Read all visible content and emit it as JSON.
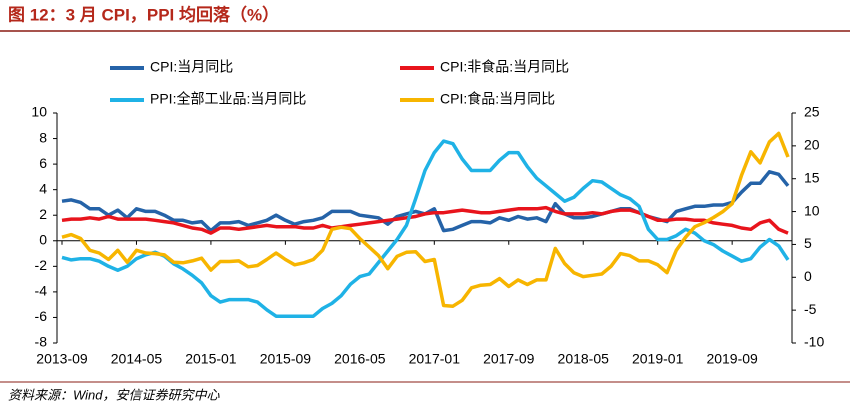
{
  "chart_data": {
    "type": "line",
    "title": "图 12：3 月 CPI，PPI 均回落（%）",
    "source": "资料来源：Wind，安信证券研究中心",
    "categories": [
      "2013-09",
      null,
      null,
      null,
      null,
      null,
      null,
      null,
      "2014-05",
      null,
      null,
      null,
      null,
      null,
      null,
      null,
      "2015-01",
      null,
      null,
      null,
      null,
      null,
      null,
      null,
      "2015-09",
      null,
      null,
      null,
      null,
      null,
      null,
      null,
      "2016-05",
      null,
      null,
      null,
      null,
      null,
      null,
      null,
      "2017-01",
      null,
      null,
      null,
      null,
      null,
      null,
      null,
      "2017-09",
      null,
      null,
      null,
      null,
      null,
      null,
      null,
      "2018-05",
      null,
      null,
      null,
      null,
      null,
      null,
      null,
      "2019-01",
      null,
      null,
      null,
      null,
      null,
      null,
      null,
      "2019-09",
      null,
      null,
      null,
      null,
      null,
      null
    ],
    "series": [
      {
        "name": "CPI:当月同比",
        "color": "#2563a8",
        "axis": "y",
        "values": [
          3.1,
          3.2,
          3.0,
          2.5,
          2.5,
          2.0,
          2.4,
          1.8,
          2.5,
          2.3,
          2.3,
          2.0,
          1.6,
          1.6,
          1.4,
          1.5,
          0.8,
          1.4,
          1.4,
          1.5,
          1.2,
          1.4,
          1.6,
          2.0,
          1.6,
          1.3,
          1.5,
          1.6,
          1.8,
          2.3,
          2.3,
          2.3,
          2.0,
          1.9,
          1.8,
          1.3,
          1.9,
          2.1,
          2.3,
          2.1,
          2.5,
          0.8,
          0.9,
          1.2,
          1.5,
          1.5,
          1.4,
          1.8,
          1.6,
          1.9,
          1.7,
          1.8,
          1.5,
          2.9,
          2.1,
          1.8,
          1.8,
          1.9,
          2.1,
          2.3,
          2.5,
          2.5,
          2.2,
          1.9,
          1.7,
          1.5,
          2.3,
          2.5,
          2.7,
          2.7,
          2.8,
          2.8,
          3.0,
          3.8,
          4.5,
          4.5,
          5.4,
          5.2,
          4.3
        ]
      },
      {
        "name": "CPI:非食品:当月同比",
        "color": "#e8141c",
        "axis": "y",
        "values": [
          1.6,
          1.7,
          1.7,
          1.8,
          1.7,
          1.9,
          1.7,
          1.7,
          1.7,
          1.7,
          1.6,
          1.5,
          1.4,
          1.2,
          1.0,
          0.9,
          0.6,
          1.0,
          1.0,
          0.9,
          1.0,
          1.1,
          1.2,
          1.1,
          1.1,
          1.1,
          1.0,
          1.0,
          1.2,
          1.0,
          1.1,
          1.2,
          1.3,
          1.4,
          1.5,
          1.6,
          1.7,
          1.8,
          1.9,
          2.1,
          2.2,
          2.2,
          2.3,
          2.4,
          2.3,
          2.2,
          2.2,
          2.3,
          2.4,
          2.5,
          2.5,
          2.5,
          2.6,
          2.3,
          2.1,
          2.1,
          2.1,
          2.2,
          2.1,
          2.3,
          2.4,
          2.4,
          2.2,
          1.9,
          1.6,
          1.6,
          1.7,
          1.7,
          1.6,
          1.6,
          1.4,
          1.3,
          1.2,
          1.0,
          0.9,
          1.4,
          1.6,
          0.9,
          0.6
        ]
      },
      {
        "name": "PPI:全部工业品:当月同比",
        "color": "#1fb2e6",
        "axis": "y",
        "values": [
          -1.3,
          -1.5,
          -1.4,
          -1.4,
          -1.6,
          -2.0,
          -2.3,
          -2.0,
          -1.4,
          -1.1,
          -0.9,
          -1.2,
          -1.8,
          -2.2,
          -2.7,
          -3.3,
          -4.3,
          -4.8,
          -4.6,
          -4.6,
          -4.6,
          -4.8,
          -5.4,
          -5.9,
          -5.9,
          -5.9,
          -5.9,
          -5.9,
          -5.3,
          -4.9,
          -4.3,
          -3.4,
          -2.8,
          -2.6,
          -1.7,
          -0.8,
          0.1,
          1.2,
          3.3,
          5.5,
          6.9,
          7.8,
          7.6,
          6.4,
          5.5,
          5.5,
          5.5,
          6.3,
          6.9,
          6.9,
          5.8,
          4.9,
          4.3,
          3.7,
          3.1,
          3.4,
          4.1,
          4.7,
          4.6,
          4.1,
          3.6,
          3.3,
          2.7,
          0.9,
          0.1,
          0.1,
          0.4,
          0.9,
          0.6,
          0.0,
          -0.3,
          -0.8,
          -1.2,
          -1.6,
          -1.4,
          -0.5,
          0.1,
          -0.4,
          -1.5
        ]
      },
      {
        "name": "CPI:食品:当月同比",
        "color": "#f7b500",
        "axis": "y2",
        "values": [
          6.1,
          6.5,
          5.9,
          4.1,
          3.7,
          2.7,
          4.1,
          2.3,
          4.1,
          3.7,
          3.6,
          3.4,
          2.3,
          2.2,
          2.5,
          2.9,
          1.1,
          2.4,
          2.4,
          2.5,
          1.6,
          1.8,
          2.7,
          3.7,
          2.7,
          1.9,
          2.2,
          2.7,
          4.1,
          7.3,
          7.6,
          7.4,
          5.9,
          4.6,
          3.3,
          1.3,
          3.2,
          3.8,
          3.9,
          2.4,
          2.7,
          -4.3,
          -4.4,
          -3.5,
          -1.6,
          -1.2,
          -1.1,
          -0.2,
          -1.4,
          -0.4,
          -1.1,
          -0.4,
          -0.4,
          4.4,
          2.1,
          0.7,
          0.1,
          0.3,
          0.5,
          1.7,
          3.6,
          3.3,
          2.5,
          2.5,
          1.9,
          0.7,
          4.1,
          6.1,
          7.7,
          8.3,
          9.1,
          10.0,
          11.2,
          15.5,
          19.1,
          17.4,
          20.6,
          21.9,
          18.3
        ]
      }
    ],
    "ylim": [
      -8,
      10
    ],
    "yticks": [
      -8,
      -6,
      -4,
      -2,
      0,
      2,
      4,
      6,
      8,
      10
    ],
    "y2lim": [
      -10,
      25
    ],
    "y2ticks": [
      -10,
      -5,
      0,
      5,
      10,
      15,
      20,
      25
    ],
    "grid": false
  }
}
